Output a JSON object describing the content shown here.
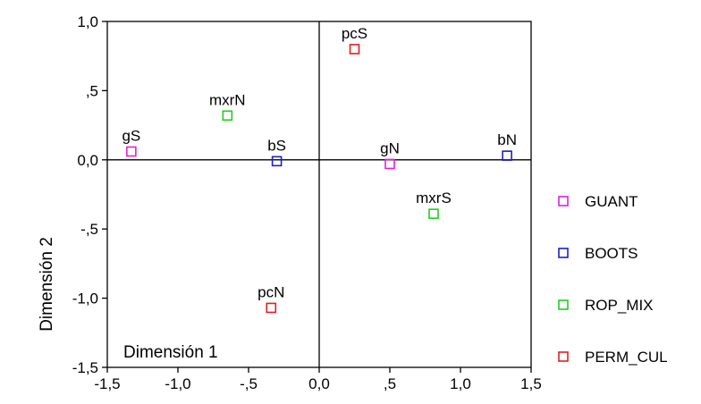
{
  "chart_data": {
    "type": "scatter",
    "xlabel": "Dimensión 1",
    "ylabel": "Dimensión 2",
    "xlim": [
      -1.5,
      1.5
    ],
    "ylim": [
      -1.5,
      1.0
    ],
    "x_ticks": [
      {
        "value": -1.5,
        "label": "-1,5"
      },
      {
        "value": -1.0,
        "label": "-1,0"
      },
      {
        "value": -0.5,
        "label": "-,5"
      },
      {
        "value": 0.0,
        "label": "0,0"
      },
      {
        "value": 0.5,
        "label": ",5"
      },
      {
        "value": 1.0,
        "label": "1,0"
      },
      {
        "value": 1.5,
        "label": "1,5"
      }
    ],
    "y_ticks": [
      {
        "value": 1.0,
        "label": "1,0"
      },
      {
        "value": 0.5,
        "label": ",5"
      },
      {
        "value": 0.0,
        "label": "0,0"
      },
      {
        "value": -0.5,
        "label": "-,5"
      },
      {
        "value": -1.0,
        "label": "-1,0"
      },
      {
        "value": -1.5,
        "label": "-1,5"
      }
    ],
    "grid": false,
    "reference_lines": [
      0,
      0
    ],
    "legend_position": "right",
    "series": [
      {
        "name": "GUANT",
        "color": "#e020e0",
        "points": [
          {
            "label": "gS",
            "x": -1.33,
            "y": 0.06
          },
          {
            "label": "gN",
            "x": 0.5,
            "y": -0.03
          }
        ]
      },
      {
        "name": "BOOTS",
        "color": "#2020c0",
        "points": [
          {
            "label": "bS",
            "x": -0.3,
            "y": -0.01
          },
          {
            "label": "bN",
            "x": 1.33,
            "y": 0.03
          }
        ]
      },
      {
        "name": "ROP_MIX",
        "color": "#20d020",
        "points": [
          {
            "label": "mxrN",
            "x": -0.65,
            "y": 0.32
          },
          {
            "label": "mxrS",
            "x": 0.81,
            "y": -0.39
          }
        ]
      },
      {
        "name": "PERM_CUL",
        "color": "#e02020",
        "points": [
          {
            "label": "pcS",
            "x": 0.25,
            "y": 0.8
          },
          {
            "label": "pcN",
            "x": -0.34,
            "y": -1.07
          }
        ]
      }
    ]
  }
}
